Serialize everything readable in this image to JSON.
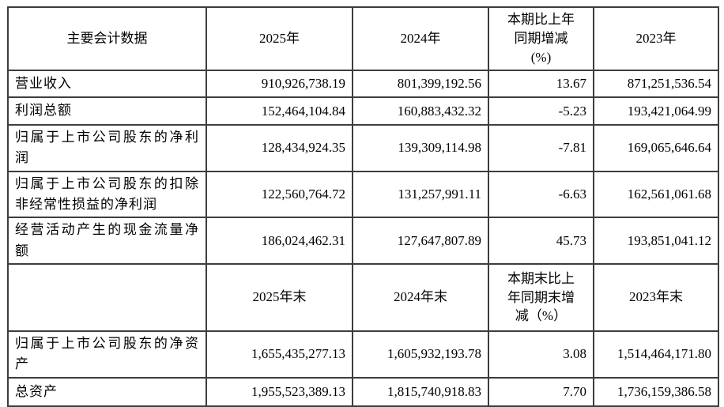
{
  "table": {
    "header_period": {
      "metric": "主要会计数据",
      "y2025": "2025年",
      "y2024": "2024年",
      "change": "本期比上年\n同期增减\n(%)",
      "y2023": "2023年"
    },
    "period_rows": [
      {
        "label": "营业收入",
        "v2025": "910,926,738.19",
        "v2024": "801,399,192.56",
        "change": "13.67",
        "v2023": "871,251,536.54"
      },
      {
        "label": "利润总额",
        "v2025": "152,464,104.84",
        "v2024": "160,883,432.32",
        "change": "-5.23",
        "v2023": "193,421,064.99"
      },
      {
        "label": "归属于上市公司股东的净利润",
        "v2025": "128,434,924.35",
        "v2024": "139,309,114.98",
        "change": "-7.81",
        "v2023": "169,065,646.64"
      },
      {
        "label": "归属于上市公司股东的扣除非经常性损益的净利润",
        "v2025": "122,560,764.72",
        "v2024": "131,257,991.11",
        "change": "-6.63",
        "v2023": "162,561,061.68"
      },
      {
        "label": "经营活动产生的现金流量净额",
        "v2025": "186,024,462.31",
        "v2024": "127,647,807.89",
        "change": "45.73",
        "v2023": "193,851,041.12"
      }
    ],
    "header_end": {
      "metric": "",
      "y2025": "2025年末",
      "y2024": "2024年末",
      "change": "本期末比上\n年同期末增\n减（%）",
      "y2023": "2023年末"
    },
    "end_rows": [
      {
        "label": "归属于上市公司股东的净资产",
        "v2025": "1,655,435,277.13",
        "v2024": "1,605,932,193.78",
        "change": "3.08",
        "v2023": "1,514,464,171.80"
      },
      {
        "label": "总资产",
        "v2025": "1,955,523,389.13",
        "v2024": "1,815,740,918.83",
        "change": "7.70",
        "v2023": "1,736,159,386.58"
      }
    ]
  }
}
